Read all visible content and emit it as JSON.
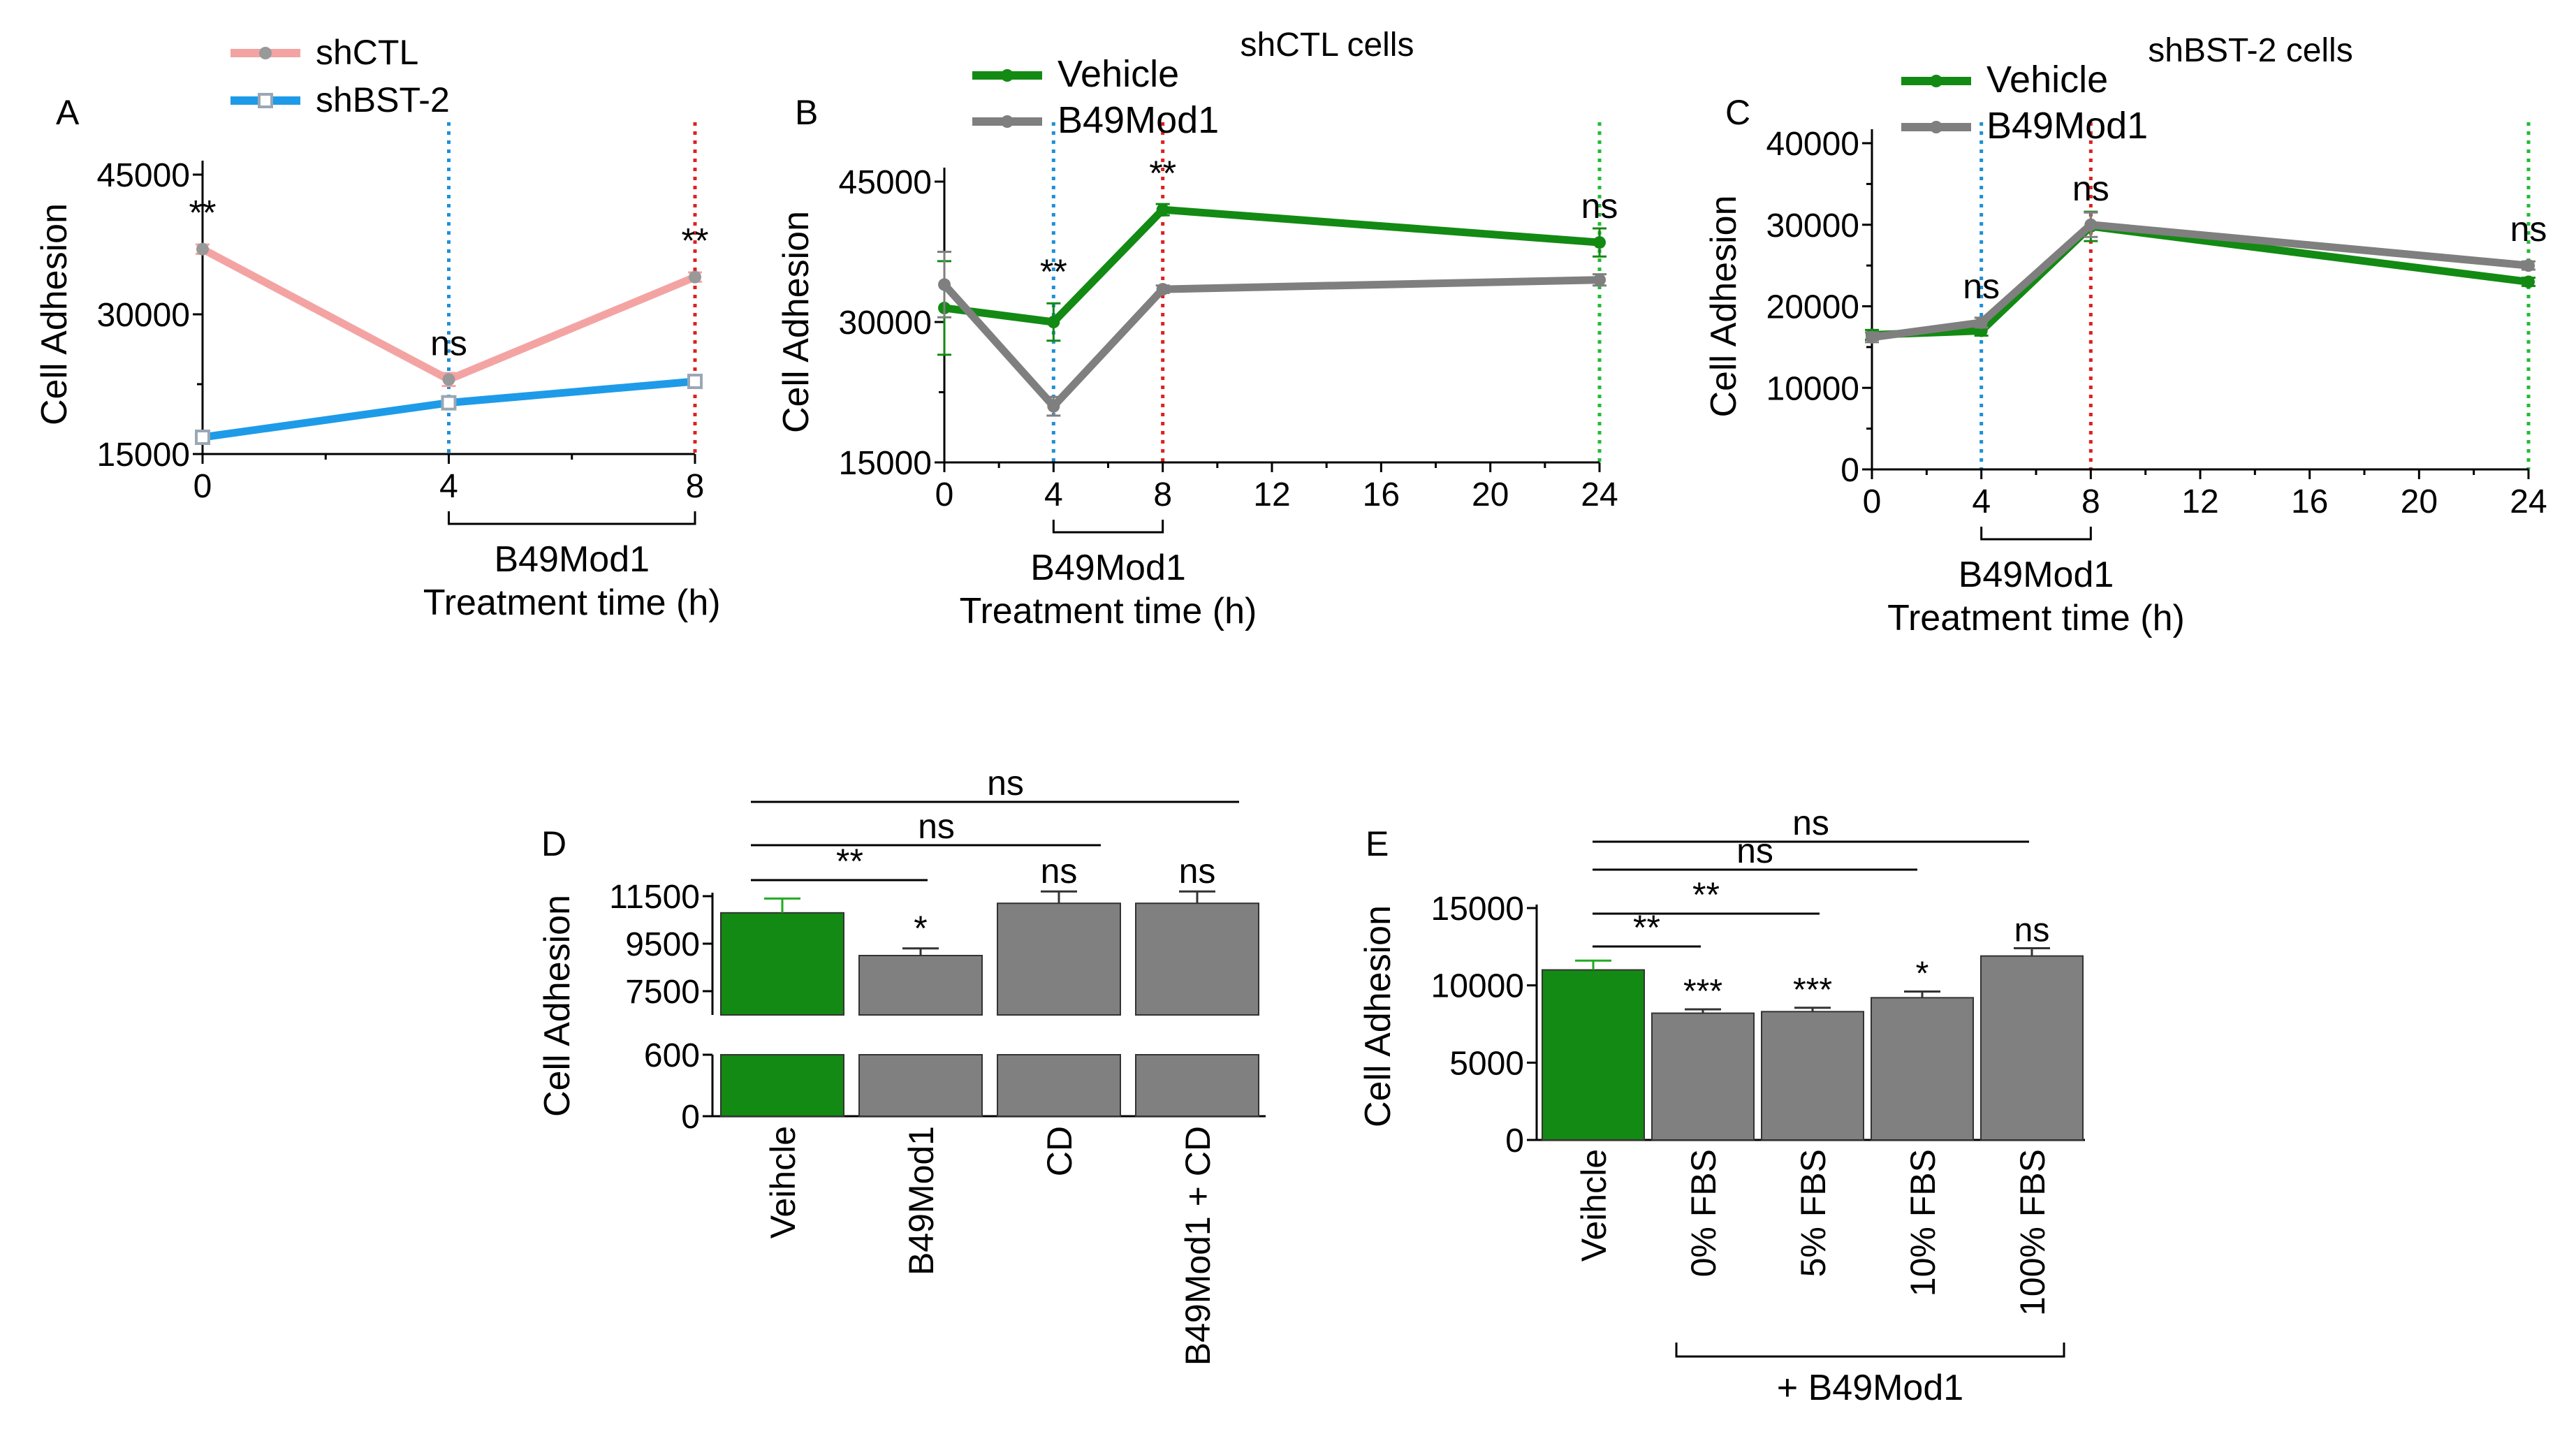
{
  "chart_data": [
    {
      "panel": "A",
      "type": "line",
      "title": "",
      "x": [
        0,
        4,
        8
      ],
      "xticks": [
        0,
        4,
        8
      ],
      "xlim": [
        0,
        8
      ],
      "ylim": [
        15000,
        45000
      ],
      "yticks": [
        15000,
        30000,
        45000
      ],
      "xlabel": "Treatment time (h)",
      "bracket_label": "B49Mod1",
      "bracket": [
        4,
        8
      ],
      "ylabel": "Cell Adhesion",
      "vlines": [
        {
          "x": 4,
          "color": "#1E90D8"
        },
        {
          "x": 8,
          "color": "#E02020"
        }
      ],
      "series": [
        {
          "name": "shCTL",
          "color": "#F4A3A3",
          "values": [
            37000,
            23000,
            34000
          ],
          "errors": [
            500,
            700,
            500
          ],
          "marker": "circle"
        },
        {
          "name": "shBST-2",
          "color": "#1E9BE8",
          "values": [
            16800,
            20500,
            22800
          ],
          "errors": [
            300,
            300,
            300
          ],
          "marker": "square"
        }
      ],
      "annotations": [
        {
          "x": 0,
          "y": 37000,
          "text": "**"
        },
        {
          "x": 4,
          "y": 23000,
          "text": "ns"
        },
        {
          "x": 8,
          "y": 34000,
          "text": "**"
        }
      ]
    },
    {
      "panel": "B",
      "type": "line",
      "title": "shCTL cells",
      "x": [
        0,
        4,
        8,
        24
      ],
      "xticks": [
        0,
        4,
        8,
        12,
        16,
        20,
        24
      ],
      "xlim": [
        0,
        24
      ],
      "ylim": [
        15000,
        45000
      ],
      "yticks": [
        15000,
        30000,
        45000
      ],
      "xlabel": "Treatment time (h)",
      "bracket_label": "B49Mod1",
      "bracket": [
        4,
        8
      ],
      "ylabel": "Cell Adhesion",
      "vlines": [
        {
          "x": 4,
          "color": "#1E90D8"
        },
        {
          "x": 8,
          "color": "#E02020"
        },
        {
          "x": 24,
          "color": "#22BB33"
        }
      ],
      "series": [
        {
          "name": "Vehicle",
          "color": "#138A13",
          "values": [
            31500,
            30000,
            42000,
            38500
          ],
          "errors": [
            5000,
            2000,
            600,
            1500
          ],
          "marker": "circle"
        },
        {
          "name": "B49Mod1",
          "color": "#7F7F7F",
          "values": [
            34000,
            21000,
            33500,
            34500
          ],
          "errors": [
            3500,
            1000,
            400,
            600
          ],
          "marker": "circle"
        }
      ],
      "annotations": [
        {
          "x": 4,
          "y": 31500,
          "text": "**"
        },
        {
          "x": 8,
          "y": 42000,
          "text": "**"
        },
        {
          "x": 24,
          "y": 38500,
          "text": "ns"
        }
      ]
    },
    {
      "panel": "C",
      "type": "line",
      "title": "shBST-2 cells",
      "x": [
        0,
        4,
        8,
        24
      ],
      "xticks": [
        0,
        4,
        8,
        12,
        16,
        20,
        24
      ],
      "xlim": [
        0,
        24
      ],
      "ylim": [
        0,
        40000
      ],
      "yticks": [
        0,
        10000,
        20000,
        30000,
        40000
      ],
      "xlabel": "Treatment time (h)",
      "bracket_label": "B49Mod1",
      "bracket": [
        4,
        8
      ],
      "ylabel": "Cell Adhesion",
      "vlines": [
        {
          "x": 4,
          "color": "#1E90D8"
        },
        {
          "x": 8,
          "color": "#E02020"
        },
        {
          "x": 24,
          "color": "#22BB33"
        }
      ],
      "series": [
        {
          "name": "Vehicle",
          "color": "#138A13",
          "values": [
            16500,
            17000,
            29800,
            23000
          ],
          "errors": [
            600,
            600,
            1800,
            500
          ],
          "marker": "circle"
        },
        {
          "name": "B49Mod1",
          "color": "#7F7F7F",
          "values": [
            16200,
            18000,
            30000,
            25000
          ],
          "errors": [
            600,
            600,
            1500,
            500
          ],
          "marker": "circle"
        }
      ],
      "annotations": [
        {
          "x": 4,
          "y": 18000,
          "text": "ns"
        },
        {
          "x": 8,
          "y": 30000,
          "text": "ns"
        },
        {
          "x": 24,
          "y": 25000,
          "text": "ns"
        }
      ]
    },
    {
      "panel": "D",
      "type": "bar",
      "title": "",
      "categories": [
        "Veihcle",
        "B49Mod1",
        "CD",
        "B49Mod1 + CD"
      ],
      "values": [
        10800,
        9000,
        11200,
        11200
      ],
      "errors": [
        600,
        300,
        500,
        500
      ],
      "colors": [
        "#138A13",
        "#808080",
        "#808080",
        "#808080"
      ],
      "ylabel": "Cell Adhesion",
      "axis_break": {
        "lower": [
          0,
          600
        ],
        "upper": [
          6500,
          11500
        ]
      },
      "lower_yticks": [
        0,
        600
      ],
      "upper_yticks": [
        7500,
        9500,
        11500
      ],
      "bar_labels": [
        "",
        "*",
        "ns",
        "ns"
      ],
      "comparisons": [
        {
          "from": 0,
          "to": 1,
          "text": "**"
        },
        {
          "from": 0,
          "to": 2,
          "text": "ns"
        },
        {
          "from": 0,
          "to": 3,
          "text": "ns"
        }
      ]
    },
    {
      "panel": "E",
      "type": "bar",
      "title": "",
      "categories": [
        "Veihcle",
        "0% FBS",
        "5% FBS",
        "10% FBS",
        "100% FBS"
      ],
      "values": [
        11000,
        8200,
        8300,
        9200,
        11900
      ],
      "errors": [
        600,
        250,
        250,
        400,
        500
      ],
      "colors": [
        "#138A13",
        "#808080",
        "#808080",
        "#808080",
        "#808080"
      ],
      "ylabel": "Cell Adhesion",
      "ylim": [
        0,
        15000
      ],
      "yticks": [
        0,
        5000,
        10000,
        15000
      ],
      "group_label": "+ B49Mod1",
      "group_from": 1,
      "group_to": 4,
      "bar_labels": [
        "",
        "***",
        "***",
        "*",
        "ns"
      ],
      "comparisons": [
        {
          "from": 0,
          "to": 1,
          "text": "**"
        },
        {
          "from": 0,
          "to": 2,
          "text": "**"
        },
        {
          "from": 0,
          "to": 3,
          "text": "ns"
        },
        {
          "from": 0,
          "to": 4,
          "text": "ns"
        }
      ]
    }
  ]
}
